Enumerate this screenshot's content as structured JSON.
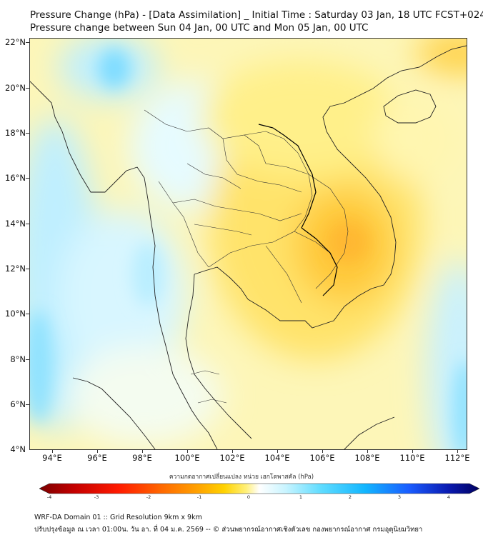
{
  "title": {
    "line1": "Pressure Change (hPa) - [Data Assimilation] _ Initial Time : Saturday 03 Jan, 18 UTC FCST+024",
    "line2": "Pressure change between Sun 04 Jan, 00 UTC and Mon 05 Jan, 00 UTC"
  },
  "map": {
    "lat_labels": [
      "22°N",
      "20°N",
      "18°N",
      "16°N",
      "14°N",
      "12°N",
      "10°N",
      "8°N",
      "6°N",
      "4°N"
    ],
    "lon_labels": [
      "94°E",
      "96°E",
      "98°E",
      "100°E",
      "102°E",
      "104°E",
      "106°E",
      "108°E",
      "110°E",
      "112°E"
    ],
    "lat_range": [
      4,
      22.2
    ],
    "lon_range": [
      93.1,
      112.5
    ]
  },
  "colorbar": {
    "title": "ความกดอากาศเปลี่ยนแปลง หน่วย เฮกโตพาสคัล (hPa)",
    "ticks": [
      "-4",
      "-3",
      "-2",
      "-1",
      "0",
      "1",
      "2",
      "3",
      "4"
    ],
    "colors": [
      "#7a0000",
      "#c40000",
      "#ff1a00",
      "#ff6a00",
      "#ffa200",
      "#ffd200",
      "#fff07a",
      "#ffffff",
      "#c8f4ff",
      "#5fdcff",
      "#12b6ff",
      "#1a5cff",
      "#0a1ab0",
      "#000060"
    ]
  },
  "footer": {
    "line1": "WRF-DA Domain 01 :: Grid Resolution 9km x 9km",
    "line2": "ปรับปรุงข้อมูล ณ เวลา 01:00น. วัน อา. ที่ 04 ม.ค. 2569 -- © ส่วนพยากรณ์อากาศเชิงตัวเลข กองพยากรณ์อากาศ กรมอุตุนิยมวิทยา"
  }
}
